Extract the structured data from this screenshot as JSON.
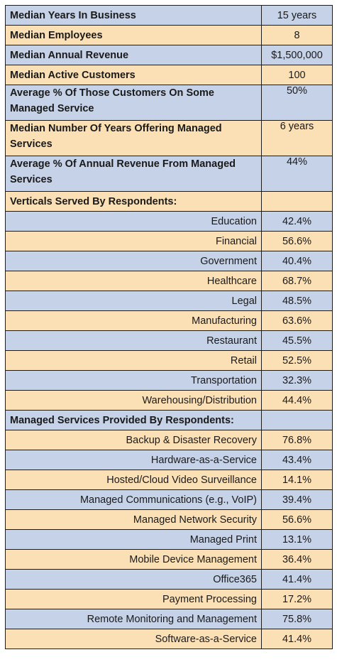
{
  "summary": [
    {
      "label": "Median Years In Business",
      "value": "15 years"
    },
    {
      "label": "Median Employees",
      "value": "8"
    },
    {
      "label": "Median Annual Revenue",
      "value": "$1,500,000"
    },
    {
      "label": "Median Active Customers",
      "value": "100"
    },
    {
      "label": "Average % Of Those Customers On Some Managed Service",
      "value": "50%"
    },
    {
      "label": "Median Number Of Years Offering Managed Services",
      "value": "6 years"
    },
    {
      "label": "Average % Of Annual Revenue From Managed Services",
      "value": "44%"
    }
  ],
  "verticals": {
    "header": "Verticals Served By Respondents:",
    "items": [
      {
        "label": "Education",
        "value": "42.4%"
      },
      {
        "label": "Financial",
        "value": "56.6%"
      },
      {
        "label": "Government",
        "value": "40.4%"
      },
      {
        "label": "Healthcare",
        "value": "68.7%"
      },
      {
        "label": "Legal",
        "value": "48.5%"
      },
      {
        "label": "Manufacturing",
        "value": "63.6%"
      },
      {
        "label": "Restaurant",
        "value": "45.5%"
      },
      {
        "label": "Retail",
        "value": "52.5%"
      },
      {
        "label": "Transportation",
        "value": "32.3%"
      },
      {
        "label": "Warehousing/Distribution",
        "value": "44.4%"
      }
    ]
  },
  "services": {
    "header": "Managed Services Provided By Respondents:",
    "items": [
      {
        "label": "Backup & Disaster Recovery",
        "value": "76.8%"
      },
      {
        "label": "Hardware-as-a-Service",
        "value": "43.4%"
      },
      {
        "label": "Hosted/Cloud Video Surveillance",
        "value": "14.1%"
      },
      {
        "label": "Managed Communications (e.g., VoIP)",
        "value": "39.4%"
      },
      {
        "label": "Managed Network Security",
        "value": "56.6%"
      },
      {
        "label": "Managed Print",
        "value": "13.1%"
      },
      {
        "label": "Mobile Device Management",
        "value": "36.4%"
      },
      {
        "label": "Office365",
        "value": "41.4%"
      },
      {
        "label": "Payment Processing",
        "value": "17.2%"
      },
      {
        "label": "Remote Monitoring and Management",
        "value": "75.8%"
      },
      {
        "label": "Software-as-a-Service",
        "value": "41.4%"
      }
    ]
  }
}
